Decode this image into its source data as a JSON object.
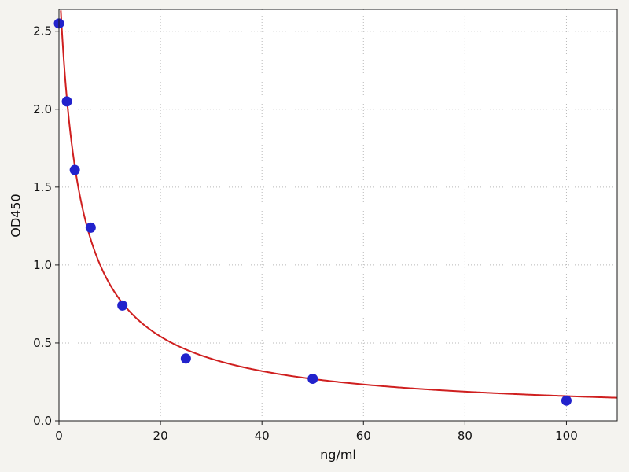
{
  "figure": {
    "background_color": "#f4f3ef",
    "plot_background_color": "#ffffff",
    "grid_color": "#b8b8b8",
    "spine_color": "#1a1a1a"
  },
  "chart_data": {
    "type": "scatter",
    "title": "",
    "xlabel": "ng/ml",
    "ylabel": "OD450",
    "xlim": [
      0,
      110
    ],
    "ylim": [
      0,
      2.64
    ],
    "xticks": [
      0,
      20,
      40,
      60,
      80,
      100
    ],
    "xtick_labels": [
      "0",
      "20",
      "40",
      "60",
      "80",
      "100"
    ],
    "yticks": [
      0,
      0.5,
      1.0,
      1.5,
      2.0,
      2.5
    ],
    "ytick_labels": [
      "0.0",
      "0.5",
      "1.0",
      "1.5",
      "2.0",
      "2.5"
    ],
    "grid": true,
    "grid_style": "dotted",
    "legend": "none",
    "point_color": "#2222cc",
    "curve_color": "#cf1f1f",
    "points": [
      {
        "x": 0,
        "y": 2.55
      },
      {
        "x": 1.56,
        "y": 2.05
      },
      {
        "x": 3.12,
        "y": 1.61
      },
      {
        "x": 6.25,
        "y": 1.24
      },
      {
        "x": 12.5,
        "y": 0.74
      },
      {
        "x": 25,
        "y": 0.4
      },
      {
        "x": 50,
        "y": 0.27
      },
      {
        "x": 100,
        "y": 0.13
      }
    ],
    "fit": {
      "model": "4PL",
      "a": 2.9,
      "b": 0.95,
      "c": 4.0,
      "d": 0.03
    }
  }
}
